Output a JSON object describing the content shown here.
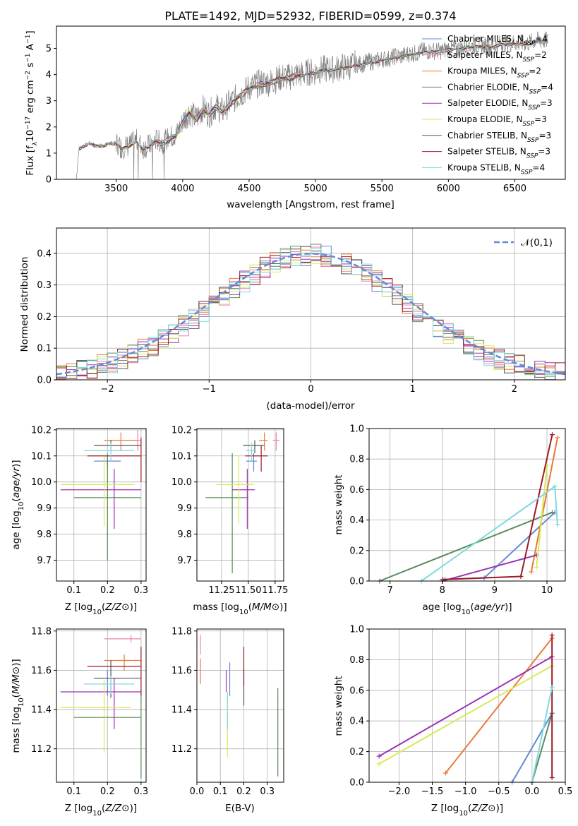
{
  "chart_data": [
    {
      "type": "line",
      "title": "PLATE=1492, MJD=52932, FIBERID=0599, z=0.374",
      "xlabel": "wavelength [Angstrom, rest frame]",
      "ylabel": "Flux [f_λ 10^{-17} erg cm^{-2} s^{-1} A^{-1}]",
      "xlim": [
        3050,
        6880
      ],
      "ylim": [
        0,
        5.85
      ],
      "xticks": [
        3500,
        4000,
        4500,
        5000,
        5500,
        6000,
        6500
      ],
      "yticks": [
        0,
        1,
        2,
        3,
        4,
        5
      ],
      "grid": false,
      "legend_position": "right",
      "data_x": [
        3200,
        3220,
        3260,
        3300,
        3350,
        3400,
        3450,
        3500,
        3540,
        3600,
        3650,
        3700,
        3750,
        3800,
        3850,
        3900,
        3950,
        4000,
        4050,
        4100,
        4150,
        4200,
        4250,
        4300,
        4350,
        4400,
        4450,
        4500,
        4550,
        4600,
        4650,
        4700,
        4750,
        4800,
        4850,
        4900,
        4950,
        5000,
        5050,
        5100,
        5150,
        5200,
        5250,
        5300,
        5350,
        5400,
        5450,
        5500,
        5550,
        5600,
        5650,
        5700,
        5750,
        5800,
        5850,
        5900,
        5950,
        6000,
        6050,
        6100,
        6150,
        6200,
        6250,
        6300,
        6350,
        6400,
        6450,
        6500,
        6550,
        6600,
        6650,
        6700,
        6750
      ],
      "data_y": [
        0,
        1.2,
        1.3,
        1.4,
        1.3,
        1.3,
        1.4,
        1.4,
        1.2,
        1.3,
        1.5,
        1.2,
        1.3,
        1.5,
        1.4,
        1.6,
        1.7,
        2.2,
        2.6,
        2.3,
        2.7,
        2.5,
        2.8,
        2.6,
        2.9,
        3.1,
        3.3,
        3.5,
        3.6,
        3.7,
        3.7,
        3.8,
        3.9,
        3.9,
        4.0,
        4.0,
        4.1,
        4.1,
        4.2,
        4.2,
        4.2,
        4.3,
        4.3,
        4.4,
        4.4,
        4.5,
        4.5,
        4.6,
        4.6,
        4.7,
        4.7,
        4.8,
        4.8,
        4.9,
        4.9,
        4.9,
        4.9,
        5.0,
        5.0,
        5.0,
        5.1,
        5.1,
        5.1,
        5.1,
        5.1,
        5.2,
        5.2,
        5.2,
        5.2,
        5.2,
        5.3,
        5.3,
        5.3
      ],
      "series": [
        {
          "name": "Chabrier MILES",
          "nssp": "4",
          "color": "#6489d6"
        },
        {
          "name": "Salpeter MILES",
          "nssp": "2",
          "color": "#ee82b0"
        },
        {
          "name": "Kroupa MILES",
          "nssp": "2",
          "color": "#e8793a"
        },
        {
          "name": "Chabrier ELODIE",
          "nssp": "4",
          "color": "#5b8a5c"
        },
        {
          "name": "Salpeter ELODIE",
          "nssp": "3",
          "color": "#9b32b0"
        },
        {
          "name": "Kroupa ELODIE",
          "nssp": "3",
          "color": "#d8ea58"
        },
        {
          "name": "Chabrier STELIB",
          "nssp": "3",
          "color": "#555555"
        },
        {
          "name": "Salpeter STELIB",
          "nssp": "3",
          "color": "#9b1b25"
        },
        {
          "name": "Kroupa STELIB",
          "nssp": "4",
          "color": "#7fd8e0"
        }
      ]
    },
    {
      "type": "bar",
      "xlabel": "(data-model)/error",
      "ylabel": "Normed distribution",
      "xlim": [
        -2.5,
        2.5
      ],
      "ylim": [
        0,
        0.48
      ],
      "xticks": [
        -2,
        -1,
        0,
        1,
        2
      ],
      "yticks": [
        0.0,
        0.1,
        0.2,
        0.3,
        0.4
      ],
      "grid": true,
      "legend_position": "top-right",
      "legend_label": "𝒩(0,1)",
      "bin_edges": [
        -2.5,
        -2.4,
        -2.3,
        -2.2,
        -2.1,
        -2.0,
        -1.9,
        -1.8,
        -1.7,
        -1.6,
        -1.5,
        -1.4,
        -1.3,
        -1.2,
        -1.1,
        -1.0,
        -0.9,
        -0.8,
        -0.7,
        -0.6,
        -0.5,
        -0.4,
        -0.3,
        -0.2,
        -0.1,
        0.0,
        0.1,
        0.2,
        0.3,
        0.4,
        0.5,
        0.6,
        0.7,
        0.8,
        0.9,
        1.0,
        1.1,
        1.2,
        1.3,
        1.4,
        1.5,
        1.6,
        1.7,
        1.8,
        1.9,
        2.0,
        2.1,
        2.2,
        2.3,
        2.4,
        2.5
      ],
      "histogram": [
        0.018,
        0.025,
        0.03,
        0.038,
        0.045,
        0.055,
        0.065,
        0.08,
        0.095,
        0.11,
        0.13,
        0.15,
        0.17,
        0.19,
        0.215,
        0.24,
        0.265,
        0.29,
        0.31,
        0.335,
        0.355,
        0.37,
        0.385,
        0.39,
        0.395,
        0.4,
        0.39,
        0.385,
        0.37,
        0.355,
        0.34,
        0.31,
        0.29,
        0.265,
        0.24,
        0.215,
        0.19,
        0.17,
        0.15,
        0.13,
        0.11,
        0.095,
        0.08,
        0.065,
        0.055,
        0.045,
        0.038,
        0.03,
        0.025,
        0.02
      ]
    },
    {
      "type": "scatter",
      "xlabel": "Z [log10(Z/Z⊙)]",
      "ylabel": "age [log10(age/yr)]",
      "xlim": [
        0.048,
        0.315
      ],
      "ylim": [
        9.62,
        10.205
      ],
      "xticks": [
        0.1,
        0.2,
        0.3
      ],
      "yticks": [
        9.7,
        9.8,
        9.9,
        10.0,
        10.1,
        10.2
      ],
      "grid": true,
      "points": [
        {
          "series": "Chabrier MILES",
          "x": 0.2,
          "xlo": 0.16,
          "xhi": 0.24,
          "y": 10.08,
          "ylo": 10.05,
          "yhi": 10.11
        },
        {
          "series": "Salpeter MILES",
          "x": 0.29,
          "xlo": 0.28,
          "xhi": 0.3,
          "y": 10.16,
          "ylo": 10.12,
          "yhi": 10.2
        },
        {
          "series": "Kroupa MILES",
          "x": 0.24,
          "xlo": 0.19,
          "xhi": 0.29,
          "y": 10.16,
          "ylo": 10.12,
          "yhi": 10.19
        },
        {
          "series": "Chabrier ELODIE",
          "x": 0.2,
          "xlo": 0.1,
          "xhi": 0.3,
          "y": 9.94,
          "ylo": 9.7,
          "yhi": 10.1
        },
        {
          "series": "Salpeter ELODIE",
          "x": 0.22,
          "xlo": 0.06,
          "xhi": 0.3,
          "y": 9.97,
          "ylo": 9.82,
          "yhi": 10.05
        },
        {
          "series": "Kroupa ELODIE",
          "x": 0.19,
          "xlo": 0.06,
          "xhi": 0.28,
          "y": 9.99,
          "ylo": 9.83,
          "yhi": 10.1
        },
        {
          "series": "Chabrier STELIB",
          "x": 0.21,
          "xlo": 0.16,
          "xhi": 0.3,
          "y": 10.14,
          "ylo": 10.12,
          "yhi": 10.16
        },
        {
          "series": "Salpeter STELIB",
          "x": 0.3,
          "xlo": 0.14,
          "xhi": 0.3,
          "y": 10.1,
          "ylo": 10.0,
          "yhi": 10.17
        },
        {
          "series": "Kroupa STELIB",
          "x": 0.21,
          "xlo": 0.13,
          "xhi": 0.28,
          "y": 10.12,
          "ylo": 10.08,
          "yhi": 10.15
        }
      ]
    },
    {
      "type": "scatter",
      "xlabel": "mass [log10(M/M⊙)]",
      "ylabel": "",
      "xlim": [
        11.02,
        11.83
      ],
      "ylim": [
        9.62,
        10.205
      ],
      "xticks": [
        11.25,
        11.5,
        11.75
      ],
      "yticks": [
        9.7,
        9.8,
        9.9,
        10.0,
        10.1,
        10.2
      ],
      "grid": true,
      "points": [
        {
          "series": "Chabrier MILES",
          "x": 11.55,
          "xlo": 11.48,
          "xhi": 11.58,
          "y": 10.08,
          "ylo": 10.04,
          "yhi": 10.11
        },
        {
          "series": "Salpeter MILES",
          "x": 11.76,
          "xlo": 11.73,
          "xhi": 11.79,
          "y": 10.16,
          "ylo": 10.12,
          "yhi": 10.19
        },
        {
          "series": "Kroupa MILES",
          "x": 11.65,
          "xlo": 11.6,
          "xhi": 11.68,
          "y": 10.16,
          "ylo": 10.12,
          "yhi": 10.19
        },
        {
          "series": "Chabrier ELODIE",
          "x": 11.35,
          "xlo": 11.1,
          "xhi": 11.5,
          "y": 9.94,
          "ylo": 9.65,
          "yhi": 10.11
        },
        {
          "series": "Salpeter ELODIE",
          "x": 11.49,
          "xlo": 11.35,
          "xhi": 11.56,
          "y": 9.97,
          "ylo": 9.82,
          "yhi": 10.05
        },
        {
          "series": "Kroupa ELODIE",
          "x": 11.41,
          "xlo": 11.2,
          "xhi": 11.55,
          "y": 9.99,
          "ylo": 9.84,
          "yhi": 10.1
        },
        {
          "series": "Chabrier STELIB",
          "x": 11.56,
          "xlo": 11.45,
          "xhi": 11.65,
          "y": 10.14,
          "ylo": 10.11,
          "yhi": 10.16
        },
        {
          "series": "Salpeter STELIB",
          "x": 11.62,
          "xlo": 11.47,
          "xhi": 11.68,
          "y": 10.1,
          "ylo": 10.04,
          "yhi": 10.14
        },
        {
          "series": "Kroupa STELIB",
          "x": 11.53,
          "xlo": 11.48,
          "xhi": 11.57,
          "y": 10.12,
          "ylo": 10.08,
          "yhi": 10.15
        }
      ]
    },
    {
      "type": "line",
      "xlabel": "age [log10(age/yr)]",
      "ylabel": "mass weight",
      "xlim": [
        6.6,
        10.35
      ],
      "ylim": [
        0,
        1.0
      ],
      "xticks": [
        7,
        8,
        9,
        10
      ],
      "yticks": [
        0.0,
        0.2,
        0.4,
        0.6,
        0.8,
        1.0
      ],
      "grid": true,
      "series": [
        {
          "name": "Chabrier MILES",
          "x": [
            8.05,
            8.8,
            10.15
          ],
          "y": [
            0.01,
            0.02,
            0.45
          ]
        },
        {
          "name": "Kroupa MILES",
          "x": [
            9.7,
            10.2
          ],
          "y": [
            0.06,
            0.94
          ]
        },
        {
          "name": "Chabrier ELODIE",
          "x": [
            6.8,
            10.1
          ],
          "y": [
            0.0,
            0.45
          ]
        },
        {
          "name": "Salpeter ELODIE",
          "x": [
            8.0,
            9.8
          ],
          "y": [
            0.0,
            0.17
          ]
        },
        {
          "name": "Kroupa ELODIE",
          "x": [
            9.8,
            10.0
          ],
          "y": [
            0.09,
            0.76
          ]
        },
        {
          "name": "Salpeter STELIB",
          "x": [
            8.0,
            9.5,
            10.1
          ],
          "y": [
            0.01,
            0.03,
            0.96
          ]
        },
        {
          "name": "Kroupa STELIB",
          "x": [
            7.6,
            10.15,
            10.2
          ],
          "y": [
            0.0,
            0.62,
            0.37
          ]
        }
      ]
    },
    {
      "type": "scatter",
      "xlabel": "Z [log10(Z/Z⊙)]",
      "ylabel": "mass [log10(M/M⊙)]",
      "xlim": [
        0.048,
        0.315
      ],
      "ylim": [
        11.03,
        11.81
      ],
      "xticks": [
        0.1,
        0.2,
        0.3
      ],
      "yticks": [
        11.2,
        11.4,
        11.6,
        11.8
      ],
      "grid": true,
      "points": [
        {
          "series": "Chabrier MILES",
          "x": 0.2,
          "xlo": 0.16,
          "xhi": 0.24,
          "y": 11.56,
          "ylo": 11.47,
          "yhi": 11.6
        },
        {
          "series": "Salpeter MILES",
          "x": 0.27,
          "xlo": 0.19,
          "xhi": 0.3,
          "y": 11.76,
          "ylo": 11.74,
          "yhi": 11.78
        },
        {
          "series": "Kroupa MILES",
          "x": 0.25,
          "xlo": 0.19,
          "xhi": 0.3,
          "y": 11.65,
          "ylo": 11.6,
          "yhi": 11.68
        },
        {
          "series": "Chabrier ELODIE",
          "x": 0.3,
          "xlo": 0.1,
          "xhi": 0.3,
          "y": 11.36,
          "ylo": 11.05,
          "yhi": 11.5
        },
        {
          "series": "Salpeter ELODIE",
          "x": 0.22,
          "xlo": 0.06,
          "xhi": 0.3,
          "y": 11.49,
          "ylo": 11.3,
          "yhi": 11.56
        },
        {
          "series": "Kroupa ELODIE",
          "x": 0.19,
          "xlo": 0.06,
          "xhi": 0.27,
          "y": 11.41,
          "ylo": 11.18,
          "yhi": 11.55
        },
        {
          "series": "Chabrier STELIB",
          "x": 0.21,
          "xlo": 0.16,
          "xhi": 0.3,
          "y": 11.56,
          "ylo": 11.46,
          "yhi": 11.65
        },
        {
          "series": "Salpeter STELIB",
          "x": 0.3,
          "xlo": 0.14,
          "xhi": 0.3,
          "y": 11.62,
          "ylo": 11.47,
          "yhi": 11.72
        },
        {
          "series": "Kroupa STELIB",
          "x": 0.21,
          "xlo": 0.13,
          "xhi": 0.28,
          "y": 11.53,
          "ylo": 11.48,
          "yhi": 11.57
        }
      ]
    },
    {
      "type": "scatter",
      "xlabel": "E(B-V)",
      "ylabel": "",
      "xlim": [
        0.0,
        0.37
      ],
      "ylim": [
        11.03,
        11.81
      ],
      "xticks": [
        0.0,
        0.1,
        0.2,
        0.3
      ],
      "yticks": [
        11.2,
        11.4,
        11.6,
        11.8
      ],
      "grid": true,
      "points": [
        {
          "series": "Chabrier MILES",
          "x": 0.14,
          "y": 11.56,
          "ylo": 11.47,
          "yhi": 11.64
        },
        {
          "series": "Salpeter MILES",
          "x": 0.015,
          "y": 11.76,
          "ylo": 11.68,
          "yhi": 11.78
        },
        {
          "series": "Kroupa MILES",
          "x": 0.015,
          "y": 11.6,
          "ylo": 11.53,
          "yhi": 11.66
        },
        {
          "series": "Chabrier ELODIE",
          "x": 0.345,
          "y": 11.36,
          "ylo": 11.06,
          "yhi": 11.51
        },
        {
          "series": "Salpeter ELODIE",
          "x": 0.125,
          "y": 11.55,
          "ylo": 11.49,
          "yhi": 11.6
        },
        {
          "series": "Kroupa ELODIE",
          "x": 0.13,
          "y": 11.4,
          "ylo": 11.16,
          "yhi": 11.49
        },
        {
          "series": "Chabrier STELIB",
          "x": 0.2,
          "y": 11.55,
          "ylo": 11.42,
          "yhi": 11.61
        },
        {
          "series": "Salpeter STELIB",
          "x": 0.2,
          "y": 11.62,
          "ylo": 11.52,
          "yhi": 11.72
        },
        {
          "series": "Kroupa STELIB",
          "x": 0.13,
          "y": 11.4,
          "ylo": 11.3,
          "yhi": 11.49
        }
      ]
    },
    {
      "type": "line",
      "xlabel": "Z [log10(Z/Z⊙)]",
      "ylabel": "mass weight",
      "xlim": [
        -2.45,
        0.5
      ],
      "ylim": [
        0,
        1.0
      ],
      "xticks": [
        -2.0,
        -1.5,
        -1.0,
        -0.5,
        0.0,
        0.5
      ],
      "yticks": [
        0.0,
        0.2,
        0.4,
        0.6,
        0.8,
        1.0
      ],
      "grid": true,
      "series": [
        {
          "name": "Chabrier MILES",
          "x": [
            -0.3,
            0.3
          ],
          "y": [
            0.0,
            0.45
          ]
        },
        {
          "name": "Kroupa MILES",
          "x": [
            -1.3,
            0.3
          ],
          "y": [
            0.06,
            0.94
          ]
        },
        {
          "name": "Chabrier ELODIE",
          "x": [
            0.0,
            0.3
          ],
          "y": [
            0.0,
            0.45
          ]
        },
        {
          "name": "Salpeter ELODIE",
          "x": [
            -2.3,
            0.3
          ],
          "y": [
            0.17,
            0.82
          ]
        },
        {
          "name": "Kroupa ELODIE",
          "x": [
            -2.3,
            0.3
          ],
          "y": [
            0.12,
            0.76
          ]
        },
        {
          "name": "Salpeter STELIB",
          "x": [
            0.3,
            0.3
          ],
          "y": [
            0.03,
            0.96
          ]
        },
        {
          "name": "Kroupa STELIB",
          "x": [
            0.0,
            0.3
          ],
          "y": [
            0.0,
            0.62
          ]
        }
      ]
    }
  ]
}
